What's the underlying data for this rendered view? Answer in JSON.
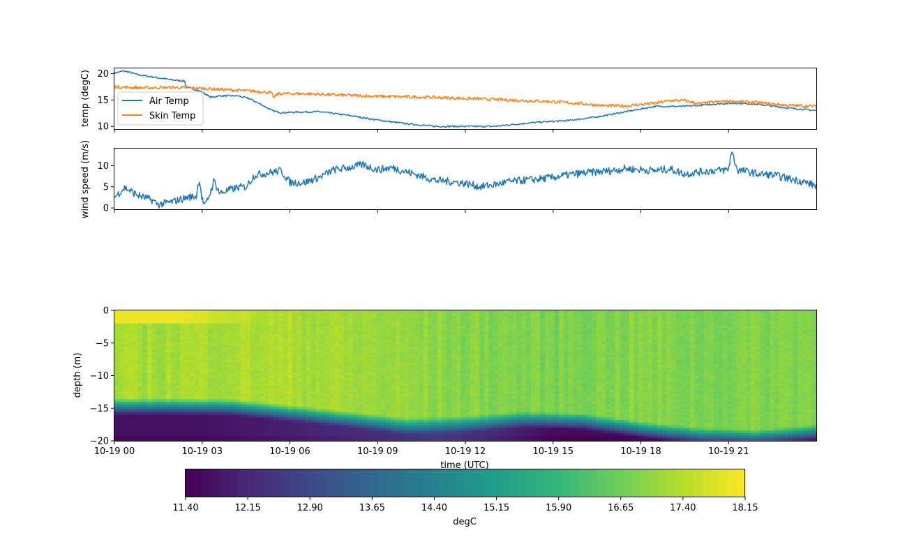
{
  "colors": {
    "air_temp": "#1f77b4",
    "skin_temp": "#ff7f0e",
    "wind": "#1f77b4",
    "viridis": [
      "#440154",
      "#482878",
      "#3e4989",
      "#31688e",
      "#26828e",
      "#1f9e89",
      "#35b779",
      "#6ece58",
      "#b5de2b",
      "#fde725"
    ]
  },
  "chart_data": [
    {
      "type": "line",
      "name": "temperature",
      "ylabel": "temp (degC)",
      "ylim": [
        9.5,
        21.0
      ],
      "yticks": [
        10,
        15,
        20
      ],
      "xlim_hours": [
        0,
        24
      ],
      "legend": {
        "placement": "center-left",
        "entries": [
          "Air Temp",
          "Skin Temp"
        ]
      },
      "series": [
        {
          "name": "Air Temp",
          "noise": 0.15,
          "points": [
            [
              0,
              20.1
            ],
            [
              0.3,
              20.5
            ],
            [
              0.5,
              20.3
            ],
            [
              0.8,
              19.8
            ],
            [
              1.5,
              19.2
            ],
            [
              2.0,
              18.8
            ],
            [
              2.4,
              18.6
            ],
            [
              2.45,
              17.5
            ],
            [
              2.7,
              17.1
            ],
            [
              3.0,
              16.5
            ],
            [
              3.3,
              15.5
            ],
            [
              3.6,
              15.8
            ],
            [
              4.2,
              15.8
            ],
            [
              4.6,
              15.3
            ],
            [
              5.0,
              14.2
            ],
            [
              5.4,
              13.0
            ],
            [
              5.7,
              12.6
            ],
            [
              6.2,
              12.7
            ],
            [
              7.0,
              12.8
            ],
            [
              8.0,
              12.1
            ],
            [
              9.0,
              11.2
            ],
            [
              10.0,
              10.5
            ],
            [
              11.0,
              10.0
            ],
            [
              12.0,
              10.0
            ],
            [
              13.0,
              10.0
            ],
            [
              13.5,
              10.3
            ],
            [
              14.5,
              10.8
            ],
            [
              15.5,
              11.1
            ],
            [
              16.5,
              11.8
            ],
            [
              17.5,
              12.8
            ],
            [
              18.5,
              13.8
            ],
            [
              19.5,
              13.8
            ],
            [
              20.0,
              14.0
            ],
            [
              20.7,
              14.3
            ],
            [
              21.3,
              14.4
            ],
            [
              22.0,
              14.2
            ],
            [
              23.0,
              13.5
            ],
            [
              24.0,
              13.0
            ]
          ]
        },
        {
          "name": "Skin Temp",
          "noise": 0.3,
          "points": [
            [
              0,
              17.5
            ],
            [
              1.0,
              17.3
            ],
            [
              2.0,
              17.4
            ],
            [
              3.0,
              17.2
            ],
            [
              4.0,
              16.9
            ],
            [
              5.0,
              16.6
            ],
            [
              5.35,
              16.4
            ],
            [
              5.45,
              15.5
            ],
            [
              5.6,
              16.2
            ],
            [
              6.5,
              16.2
            ],
            [
              8.0,
              15.9
            ],
            [
              9.0,
              15.7
            ],
            [
              10.0,
              15.6
            ],
            [
              11.0,
              15.5
            ],
            [
              12.0,
              15.3
            ],
            [
              13.0,
              15.1
            ],
            [
              14.0,
              14.9
            ],
            [
              15.0,
              14.7
            ],
            [
              16.0,
              14.3
            ],
            [
              16.8,
              13.9
            ],
            [
              17.5,
              13.9
            ],
            [
              18.5,
              14.4
            ],
            [
              19.0,
              14.9
            ],
            [
              19.5,
              14.9
            ],
            [
              20.0,
              14.3
            ],
            [
              20.5,
              14.6
            ],
            [
              21.0,
              14.8
            ],
            [
              22.0,
              14.5
            ],
            [
              23.0,
              14.0
            ],
            [
              24.0,
              13.8
            ]
          ]
        }
      ]
    },
    {
      "type": "line",
      "name": "wind",
      "ylabel": "wind speed (m/s)",
      "ylim": [
        -0.3,
        14.0
      ],
      "yticks": [
        0,
        5,
        10
      ],
      "xlim_hours": [
        0,
        24
      ],
      "series": [
        {
          "name": "wind speed",
          "noise": 0.9,
          "points": [
            [
              0,
              2.5
            ],
            [
              0.35,
              4.8
            ],
            [
              0.8,
              3.0
            ],
            [
              1.3,
              1.8
            ],
            [
              1.5,
              0.8
            ],
            [
              2.0,
              1.5
            ],
            [
              2.5,
              2.5
            ],
            [
              2.8,
              2.8
            ],
            [
              2.9,
              7.0
            ],
            [
              3.0,
              2.0
            ],
            [
              3.1,
              0.4
            ],
            [
              3.3,
              4.0
            ],
            [
              3.4,
              6.5
            ],
            [
              3.6,
              3.5
            ],
            [
              4.2,
              4.8
            ],
            [
              4.5,
              5.0
            ],
            [
              4.8,
              7.8
            ],
            [
              5.2,
              8.2
            ],
            [
              5.7,
              8.8
            ],
            [
              6.0,
              6.0
            ],
            [
              6.5,
              6.0
            ],
            [
              7.0,
              7.2
            ],
            [
              7.5,
              9.0
            ],
            [
              8.0,
              9.5
            ],
            [
              8.5,
              10.2
            ],
            [
              9.0,
              9.0
            ],
            [
              9.5,
              9.5
            ],
            [
              10.0,
              8.5
            ],
            [
              10.5,
              7.5
            ],
            [
              11.0,
              6.5
            ],
            [
              11.5,
              6.2
            ],
            [
              12.0,
              5.8
            ],
            [
              12.5,
              5.0
            ],
            [
              13.0,
              5.5
            ],
            [
              13.5,
              6.2
            ],
            [
              14.0,
              6.5
            ],
            [
              14.5,
              6.8
            ],
            [
              15.0,
              7.2
            ],
            [
              15.5,
              7.8
            ],
            [
              16.0,
              8.2
            ],
            [
              16.5,
              8.5
            ],
            [
              17.0,
              8.8
            ],
            [
              17.5,
              9.3
            ],
            [
              18.0,
              9.0
            ],
            [
              18.5,
              8.8
            ],
            [
              19.0,
              9.2
            ],
            [
              19.5,
              8.0
            ],
            [
              20.0,
              8.5
            ],
            [
              20.5,
              8.8
            ],
            [
              21.0,
              9.0
            ],
            [
              21.1,
              13.5
            ],
            [
              21.3,
              9.0
            ],
            [
              21.7,
              8.5
            ],
            [
              22.0,
              8.0
            ],
            [
              22.5,
              7.8
            ],
            [
              23.0,
              7.0
            ],
            [
              23.5,
              6.3
            ],
            [
              24.0,
              5.2
            ]
          ]
        }
      ]
    },
    {
      "type": "heatmap",
      "name": "depth-temperature",
      "ylabel": "depth (m)",
      "xlabel": "time (UTC)",
      "ylim": [
        -20,
        0
      ],
      "yticks": [
        0,
        -5,
        -10,
        -15,
        -20
      ],
      "xlim_hours": [
        0,
        24
      ],
      "xticks_hours": [
        0,
        3,
        6,
        9,
        12,
        15,
        18,
        21
      ],
      "xticklabels": [
        "10-19 00",
        "10-19 03",
        "10-19 06",
        "10-19 09",
        "10-19 12",
        "10-19 15",
        "10-19 18",
        "10-19 21"
      ],
      "colorbar": {
        "label": "degC",
        "range": [
          11.4,
          18.15
        ],
        "ticks": [
          "11.40",
          "12.15",
          "12.90",
          "13.65",
          "14.40",
          "15.15",
          "15.90",
          "16.65",
          "17.40",
          "18.15"
        ]
      },
      "mixed_layer_temp_degC": [
        [
          0,
          17.2
        ],
        [
          4,
          17.3
        ],
        [
          6,
          17.3
        ],
        [
          9,
          17.1
        ],
        [
          12,
          16.9
        ],
        [
          15,
          16.8
        ],
        [
          18,
          16.9
        ],
        [
          20,
          16.8
        ],
        [
          24,
          16.9
        ]
      ],
      "surface_layer": {
        "depth_m": 2,
        "warm_until_hours": 5.5,
        "temp_degC": 18.0
      },
      "thermocline_top_depth_m": [
        [
          0,
          -13.5
        ],
        [
          2,
          -13.5
        ],
        [
          4,
          -13.6
        ],
        [
          6,
          -14.5
        ],
        [
          8,
          -15.5
        ],
        [
          10,
          -16.5
        ],
        [
          12,
          -16.2
        ],
        [
          14,
          -15.5
        ],
        [
          16,
          -15.8
        ],
        [
          18,
          -17.0
        ],
        [
          20,
          -18.0
        ],
        [
          22,
          -18.3
        ],
        [
          24,
          -17.5
        ]
      ],
      "deep_temp_degC": [
        [
          0,
          11.7
        ],
        [
          3,
          11.7
        ],
        [
          6,
          12.0
        ],
        [
          9,
          12.3
        ],
        [
          11,
          12.7
        ],
        [
          13,
          12.2
        ],
        [
          15,
          11.6
        ],
        [
          17,
          11.6
        ],
        [
          19,
          11.8
        ],
        [
          21,
          11.6
        ],
        [
          24,
          11.6
        ]
      ]
    }
  ]
}
